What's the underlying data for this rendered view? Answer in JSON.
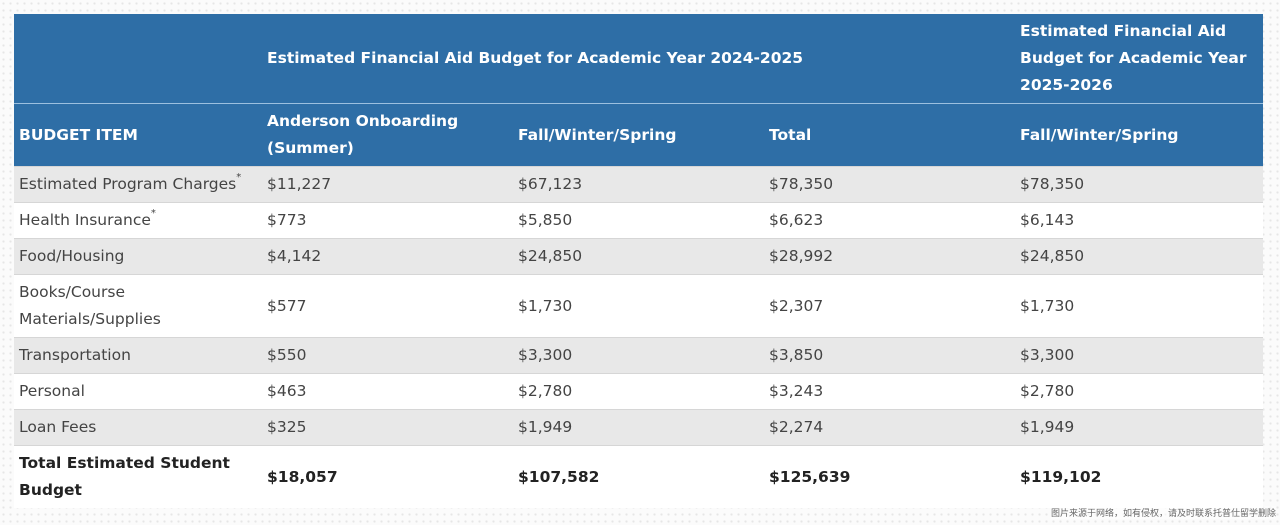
{
  "table": {
    "header_row1": {
      "col1": "",
      "year1_title": "Estimated Financial Aid Budget for Academic Year 2024-2025",
      "year2_title": "Estimated Financial Aid Budget for Academic Year 2025-2026"
    },
    "header_row2": [
      "BUDGET ITEM",
      "Anderson Onboarding (Summer)",
      "Fall/Winter/Spring",
      "Total",
      "Fall/Winter/Spring"
    ],
    "rows": [
      {
        "item": "Estimated Program Charges",
        "mark": "*",
        "c1": "$11,227",
        "c2": "$67,123",
        "c3": "$78,350",
        "c4": "$78,350"
      },
      {
        "item": "Health Insurance",
        "mark": "*",
        "c1": "$773",
        "c2": "$5,850",
        "c3": "$6,623",
        "c4": "$6,143"
      },
      {
        "item": "Food/Housing",
        "mark": "",
        "c1": "$4,142",
        "c2": "$24,850",
        "c3": "$28,992",
        "c4": "$24,850"
      },
      {
        "item": "Books/Course Materials/Supplies",
        "mark": "",
        "c1": "$577",
        "c2": "$1,730",
        "c3": "$2,307",
        "c4": "$1,730"
      },
      {
        "item": "Transportation",
        "mark": "",
        "c1": "$550",
        "c2": "$3,300",
        "c3": "$3,850",
        "c4": "$3,300"
      },
      {
        "item": "Personal",
        "mark": "",
        "c1": "$463",
        "c2": "$2,780",
        "c3": "$3,243",
        "c4": "$2,780"
      },
      {
        "item": "Loan Fees",
        "mark": "",
        "c1": "$325",
        "c2": "$1,949",
        "c3": "$2,274",
        "c4": "$1,949"
      }
    ],
    "total_row": {
      "item": "Total Estimated Student Budget",
      "c1": "$18,057",
      "c2": "$107,582",
      "c3": "$125,639",
      "c4": "$119,102"
    }
  },
  "watermark": "图片来源于网络，如有侵权，请及时联系托普仕留学删除",
  "colors": {
    "header_bg": "#2e6ea6",
    "stripe": "#e8e8e8"
  }
}
